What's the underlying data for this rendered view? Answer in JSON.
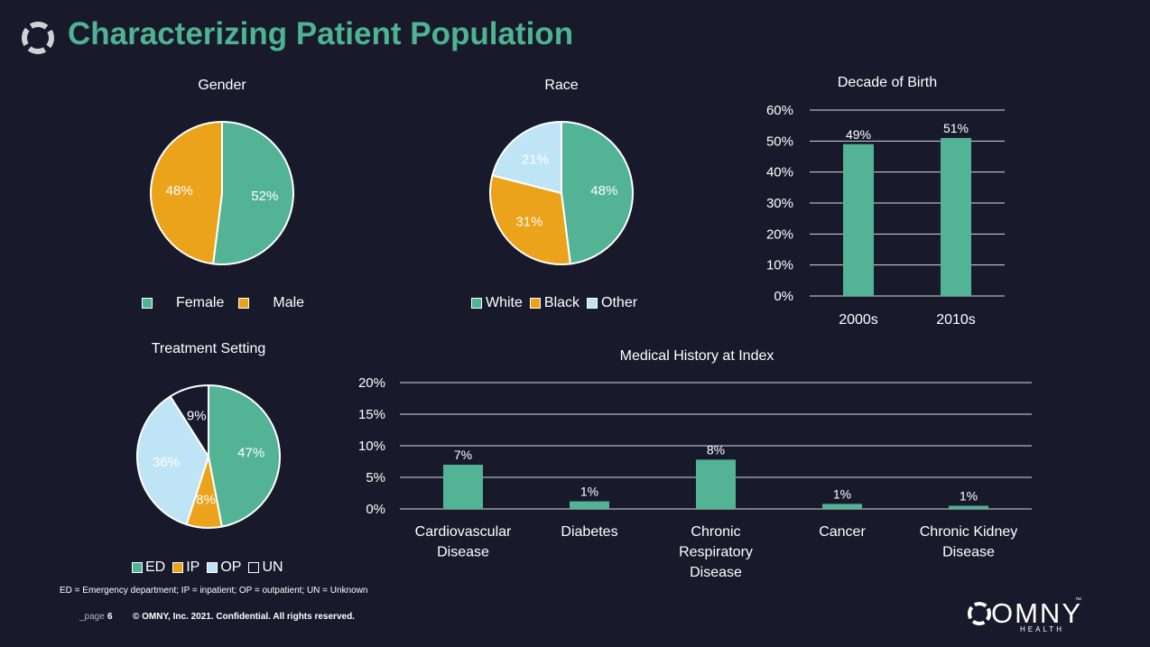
{
  "header": {
    "title": "Characterizing Patient Population"
  },
  "colors": {
    "green": "#52b395",
    "orange": "#eba31c",
    "lightblue": "#bfe4f6",
    "dark": "#181a2c",
    "title": "#4fb392"
  },
  "chart_data": [
    {
      "id": "gender",
      "type": "pie",
      "title": "Gender",
      "slices": [
        {
          "label": "Female",
          "value": 52,
          "display": "52%",
          "color": "#52b395"
        },
        {
          "label": "Male",
          "value": 48,
          "display": "48%",
          "color": "#eba31c"
        }
      ],
      "legend": "bottom"
    },
    {
      "id": "race",
      "type": "pie",
      "title": "Race",
      "slices": [
        {
          "label": "White",
          "value": 48,
          "display": "48%",
          "color": "#52b395"
        },
        {
          "label": "Black",
          "value": 31,
          "display": "31%",
          "color": "#eba31c"
        },
        {
          "label": "Other",
          "value": 21,
          "display": "21%",
          "color": "#bfe4f6"
        }
      ],
      "legend": "bottom"
    },
    {
      "id": "decade",
      "type": "bar",
      "title": "Decade of Birth",
      "categories": [
        "2000s",
        "2010s"
      ],
      "values": [
        49,
        51
      ],
      "labels": [
        "49%",
        "51%"
      ],
      "ylim": [
        0,
        60
      ],
      "yticks": [
        "0%",
        "10%",
        "20%",
        "30%",
        "40%",
        "50%",
        "60%"
      ],
      "grid": true
    },
    {
      "id": "treatment",
      "type": "pie",
      "title": "Treatment Setting",
      "slices": [
        {
          "label": "ED",
          "value": 47,
          "display": "47%",
          "color": "#52b395"
        },
        {
          "label": "IP",
          "value": 8,
          "display": "8%",
          "color": "#eba31c"
        },
        {
          "label": "OP",
          "value": 36,
          "display": "36%",
          "color": "#bfe4f6"
        },
        {
          "label": "UN",
          "value": 9,
          "display": "9%",
          "color": "#181a2c"
        }
      ],
      "legend": "bottom"
    },
    {
      "id": "history",
      "type": "bar",
      "title": "Medical History at Index",
      "categories": [
        [
          "Cardiovascular",
          "Disease"
        ],
        [
          "Diabetes"
        ],
        [
          "Chronic",
          "Respiratory",
          "Disease"
        ],
        [
          "Cancer"
        ],
        [
          "Chronic Kidney",
          "Disease"
        ]
      ],
      "values": [
        7,
        1.2,
        7.8,
        0.8,
        0.5
      ],
      "labels": [
        "7%",
        "1%",
        "8%",
        "1%",
        "1%"
      ],
      "ylim": [
        0,
        20
      ],
      "yticks": [
        "0%",
        "5%",
        "10%",
        "15%",
        "20%"
      ],
      "grid": true
    }
  ],
  "footer": {
    "footnote": "ED = Emergency department; IP = inpatient; OP = outpatient; UN = Unknown",
    "page_label": "_page",
    "page_number": "6",
    "copyright": "© OMNY, Inc. 2021. Confidential. All rights reserved.",
    "brand": "OMNY",
    "brand_sub": "HEALTH",
    "brand_tm": "™"
  }
}
